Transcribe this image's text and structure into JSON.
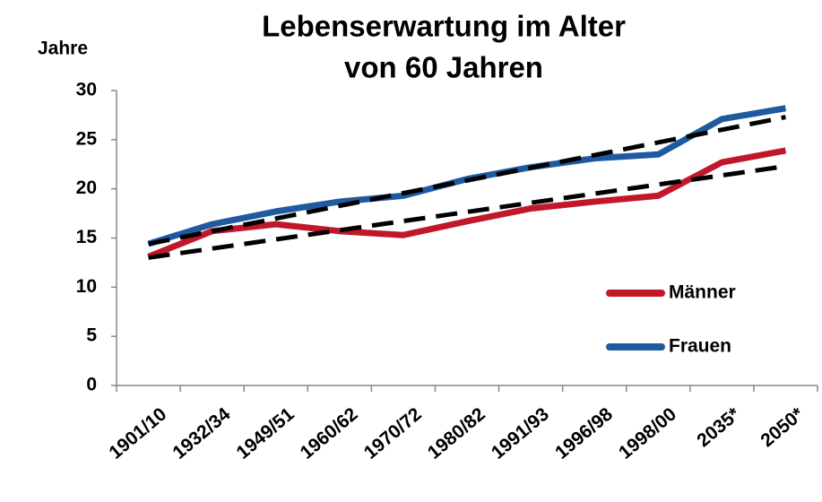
{
  "chart_data": {
    "type": "line",
    "title": [
      "Lebenserwartung im Alter",
      "von 60 Jahren"
    ],
    "y_label": "Jahre",
    "categories": [
      "1901/10",
      "1932/34",
      "1949/51",
      "1960/62",
      "1970/72",
      "1980/82",
      "1991/93",
      "1996/98",
      "1998/00",
      "2035*",
      "2050*"
    ],
    "series": [
      {
        "name": "Männer",
        "color": "#c0182a",
        "values": [
          13.1,
          15.7,
          16.4,
          15.7,
          15.3,
          16.7,
          18.0,
          18.7,
          19.3,
          22.7,
          23.9
        ]
      },
      {
        "name": "Frauen",
        "color": "#1f5aa0",
        "values": [
          14.4,
          16.4,
          17.7,
          18.7,
          19.3,
          21.0,
          22.2,
          23.1,
          23.5,
          27.1,
          28.2
        ]
      }
    ],
    "trendlines": [
      {
        "color": "#000000",
        "values": [
          13.0,
          22.3
        ]
      },
      {
        "color": "#000000",
        "values": [
          14.4,
          27.3
        ]
      }
    ],
    "ylim": [
      0,
      30
    ],
    "yticks": [
      0,
      5,
      10,
      15,
      20,
      25,
      30
    ],
    "legend": "right"
  }
}
